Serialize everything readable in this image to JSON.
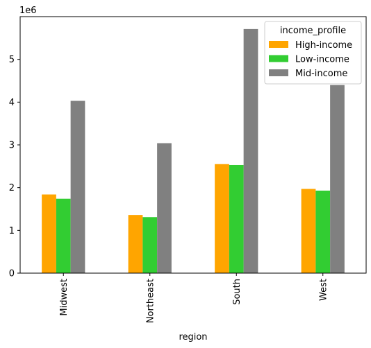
{
  "chart_data": {
    "type": "bar",
    "categories": [
      "Midwest",
      "Northeast",
      "South",
      "West"
    ],
    "series": [
      {
        "name": "High-income",
        "color": "#ffa500",
        "values": [
          1840000,
          1360000,
          2550000,
          1970000
        ]
      },
      {
        "name": "Low-income",
        "color": "#32cd32",
        "values": [
          1740000,
          1310000,
          2530000,
          1930000
        ]
      },
      {
        "name": "Mid-income",
        "color": "#808080",
        "values": [
          4030000,
          3040000,
          5710000,
          4400000
        ]
      }
    ],
    "xlabel": "region",
    "ylabel": "",
    "ylim": [
      0,
      6000000
    ],
    "y_ticks": [
      0,
      1,
      2,
      3,
      4,
      5
    ],
    "y_offset_label": "1e6",
    "legend": {
      "title": "income_profile",
      "placement": "top-right"
    },
    "grid": false
  }
}
